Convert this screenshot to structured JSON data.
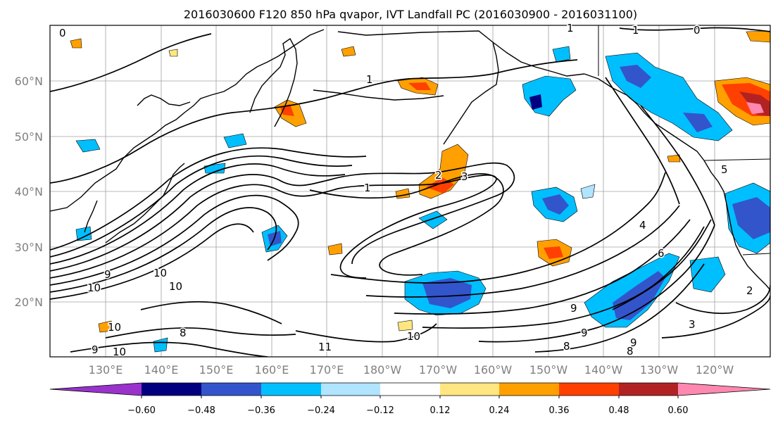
{
  "title": "2016030600 F120 850 hPa qvapor, IVT Landfall PC (2016030900 - 2016031100)",
  "lat_labels": [
    "60°N",
    "50°N",
    "40°N",
    "30°N",
    "20°N"
  ],
  "lon_labels": [
    "130°E",
    "140°E",
    "150°E",
    "160°E",
    "170°E",
    "180°W",
    "170°W",
    "160°W",
    "150°W",
    "140°W",
    "130°W",
    "120°W"
  ],
  "contour_labels": [
    "0",
    "1",
    "1",
    "1",
    "1",
    "2",
    "3",
    "4",
    "5",
    "6",
    "9",
    "10",
    "10",
    "10",
    "10",
    "10",
    "10",
    "11",
    "9",
    "8",
    "9",
    "9",
    "8",
    "8",
    "9",
    "3",
    "2",
    "0"
  ],
  "colorbar": {
    "tick_labels": [
      "−0.60",
      "−0.48",
      "−0.36",
      "−0.24",
      "−0.12",
      "0.12",
      "0.24",
      "0.36",
      "0.48",
      "0.60"
    ],
    "colors": [
      "#9933cc",
      "#000080",
      "#3355cc",
      "#00bfff",
      "#b0e4ff",
      "#ffffff",
      "#ffe680",
      "#ffa000",
      "#ff4000",
      "#b22222",
      "#ff88b0"
    ]
  },
  "anomaly_colors": {
    "neg_weak": "#b0e4ff",
    "neg_mid": "#00bfff",
    "neg_strong": "#3355cc",
    "neg_max": "#000080",
    "pos_weak": "#ffe680",
    "pos_mid": "#ffa000",
    "pos_strong": "#ff4000",
    "pos_max": "#b22222",
    "pos_extreme": "#ff88b0"
  }
}
